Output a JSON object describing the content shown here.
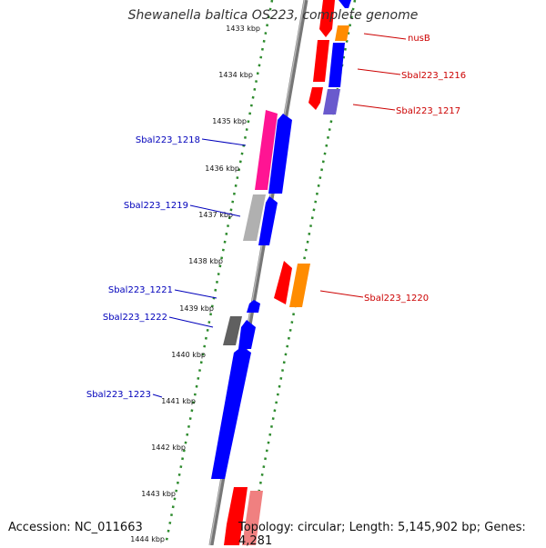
{
  "title": "Shewanella baltica OS223, complete genome",
  "accession": "Accession: NC_011663",
  "topology": "Topology: circular; Length: 5,145,902 bp; Genes: 4,281",
  "ticks": [
    "1433 kbp",
    "1434 kbp",
    "1435 kbp",
    "1436 kbp",
    "1437 kbp",
    "1438 kbp",
    "1439 kbp",
    "1440 kbp",
    "1441 kbp",
    "1442 kbp",
    "1443 kbp",
    "1444 kbp"
  ],
  "gene_labels": {
    "nusB": "nusB",
    "sbal1216": "Sbal223_1216",
    "sbal1217": "Sbal223_1217",
    "sbal1218": "Sbal223_1218",
    "sbal1219": "Sbal223_1219",
    "sbal1220": "Sbal223_1220",
    "sbal1221": "Sbal223_1221",
    "sbal1222": "Sbal223_1222",
    "sbal1223": "Sbal223_1223"
  },
  "colors": {
    "backbone": "#888888",
    "ticks_dots": "#2e8b2e",
    "forward_label": "#cc0000",
    "reverse_label": "#0000bb",
    "red_gene": "#ff0000",
    "blue_gene": "#0000ff",
    "orange_gene": "#ff8c00",
    "pink_gene": "#ff1493",
    "grey_gene": "#b0b0b0",
    "dark_gene": "#606060",
    "purple_gene": "#6a5acd",
    "light_red_gene": "#f08080"
  }
}
